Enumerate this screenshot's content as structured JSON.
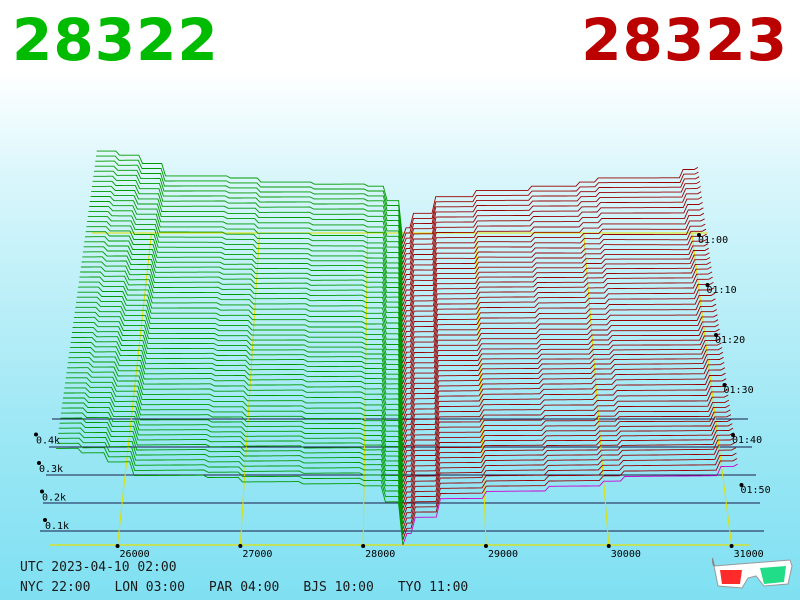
{
  "header": {
    "bid": {
      "text": "28322",
      "color": "#00bb00"
    },
    "ask": {
      "text": "28323",
      "color": "#bb0000"
    }
  },
  "footer": {
    "utc": "UTC 2023-04-10 02:00",
    "zones": [
      {
        "label": "NYC 22:00"
      },
      {
        "label": "LON 03:00"
      },
      {
        "label": "PAR 04:00"
      },
      {
        "label": "BJS 10:00"
      },
      {
        "label": "TYO 11:00"
      }
    ]
  },
  "glasses_icon": "3d-glasses-icon",
  "chart_data": {
    "type": "area",
    "colors": {
      "bid": "#009900",
      "ask": "#990000",
      "latest_ask": "#cc00cc",
      "grid": "#e0e000",
      "base": "#1a1a4a"
    },
    "price_ticks": [
      26000,
      27000,
      28000,
      29000,
      30000,
      31000
    ],
    "volume_ticks": [
      "0.1k",
      "0.2k",
      "0.3k",
      "0.4k"
    ],
    "time_ticks": [
      "01:00",
      "01:10",
      "01:20",
      "01:30",
      "01:40",
      "01:50"
    ],
    "mid_price": 28322.5,
    "series": [
      {
        "name": "bid",
        "price_points": [
          25500,
          25700,
          25900,
          26100,
          26700,
          27000,
          27500,
          28000,
          28150,
          28300
        ],
        "volume_points": [
          0.42,
          0.4,
          0.36,
          0.3,
          0.29,
          0.27,
          0.26,
          0.25,
          0.18,
          0.03
        ]
      },
      {
        "name": "ask",
        "price_points": [
          28340,
          28400,
          28600,
          29000,
          29500,
          29950,
          30100,
          30900,
          31050
        ],
        "volume_points": [
          0.05,
          0.12,
          0.2,
          0.23,
          0.25,
          0.27,
          0.29,
          0.33,
          0.34
        ]
      }
    ],
    "time_slices": 60
  }
}
